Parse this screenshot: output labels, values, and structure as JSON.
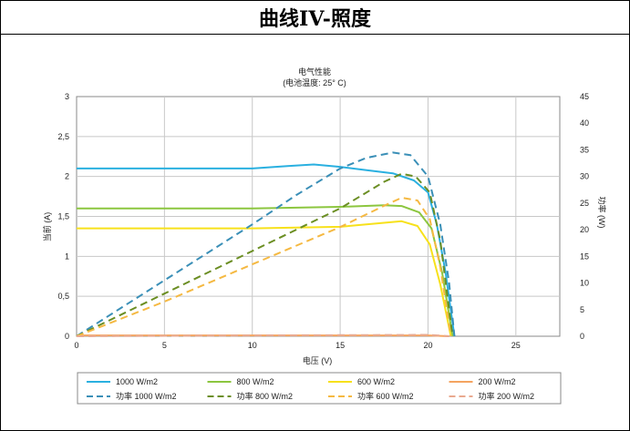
{
  "header": {
    "title": "曲线IV-照度"
  },
  "chart_data": {
    "type": "line",
    "title": "电气性能",
    "subtitle": "(电池温度: 25° C)",
    "xlabel": "电压 (V)",
    "ylabel": "当前 (A)",
    "y2label": "功率 (W)",
    "xlim": [
      0,
      27.5
    ],
    "ylim": [
      0,
      3
    ],
    "y2lim": [
      0,
      45
    ],
    "xticks": [
      "0",
      "5",
      "10",
      "15",
      "20",
      "25"
    ],
    "yticks": [
      "0",
      "0,5",
      "1",
      "1,5",
      "2",
      "2,5",
      "3"
    ],
    "y2ticks": [
      "0",
      "5",
      "10",
      "15",
      "20",
      "25",
      "30",
      "35",
      "40",
      "45"
    ],
    "grid": true,
    "legend_position": "bottom",
    "series": [
      {
        "name": "1000 W/m2",
        "axis": "left",
        "color": "#2ab0e0",
        "dash": false,
        "x": [
          0,
          5,
          10,
          12,
          13.5,
          15,
          16.5,
          18,
          19.2,
          20,
          20.5,
          21,
          21.5
        ],
        "y": [
          2.1,
          2.1,
          2.1,
          2.13,
          2.15,
          2.12,
          2.08,
          2.04,
          1.95,
          1.8,
          1.4,
          0.8,
          0
        ]
      },
      {
        "name": "800 W/m2",
        "axis": "left",
        "color": "#8cc63f",
        "dash": false,
        "x": [
          0,
          5,
          10,
          15,
          17.5,
          18.5,
          19.5,
          20.2,
          20.8,
          21.4
        ],
        "y": [
          1.6,
          1.6,
          1.6,
          1.62,
          1.64,
          1.63,
          1.55,
          1.35,
          0.8,
          0
        ]
      },
      {
        "name": "600 W/m2",
        "axis": "left",
        "color": "#f7e11b",
        "dash": false,
        "x": [
          0,
          5,
          10,
          15,
          17.5,
          18.5,
          19.4,
          20.1,
          20.7,
          21.3
        ],
        "y": [
          1.35,
          1.35,
          1.35,
          1.37,
          1.42,
          1.44,
          1.38,
          1.15,
          0.65,
          0
        ]
      },
      {
        "name": "200 W/m2",
        "axis": "left",
        "color": "#f4a460",
        "dash": false,
        "x": [
          0,
          5,
          10,
          15,
          20,
          21.2
        ],
        "y": [
          0.01,
          0.01,
          0.01,
          0.01,
          0.01,
          0
        ]
      },
      {
        "name": "功率 1000 W/m2",
        "axis": "right",
        "color": "#3a8fb7",
        "dash": true,
        "x": [
          0,
          5,
          10,
          12.5,
          15,
          16.5,
          18,
          19,
          20,
          20.7,
          21.2,
          21.5
        ],
        "y": [
          0,
          10.5,
          21,
          26.5,
          31.5,
          33.5,
          34.5,
          34,
          30,
          21,
          10,
          0
        ]
      },
      {
        "name": "功率 800 W/m2",
        "axis": "right",
        "color": "#6b8e23",
        "dash": true,
        "x": [
          0,
          5,
          10,
          15,
          17.5,
          18.5,
          19.3,
          20.1,
          20.7,
          21.4
        ],
        "y": [
          0,
          8,
          16,
          24,
          29,
          30.5,
          30,
          27,
          18,
          0
        ]
      },
      {
        "name": "功率 600 W/m2",
        "axis": "right",
        "color": "#f5b942",
        "dash": true,
        "x": [
          0,
          5,
          10,
          15,
          17.5,
          18.5,
          19.4,
          20.1,
          20.7,
          21.3
        ],
        "y": [
          0,
          6.5,
          13.5,
          20.5,
          24.5,
          26,
          25.5,
          22,
          13,
          0
        ]
      },
      {
        "name": "功率 200 W/m2",
        "axis": "right",
        "color": "#e9a98f",
        "dash": true,
        "x": [
          0,
          10,
          20,
          21.2
        ],
        "y": [
          0,
          0.15,
          0.25,
          0
        ]
      }
    ]
  }
}
